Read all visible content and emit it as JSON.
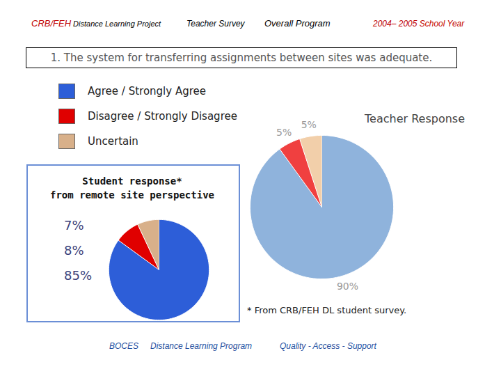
{
  "header": {
    "project": "CRB/FEH",
    "project_sub": "Distance Learning Project",
    "survey": "Teacher Survey",
    "scope": "Overall Program",
    "year": "2004– 2005 School Year"
  },
  "question": "1. The system for transferring assignments between sites was adequate.",
  "chart_data": [
    {
      "type": "pie",
      "title": "Teacher Response",
      "categories": [
        "Agree / Strongly Agree",
        "Disagree / Strongly Disagree",
        "Uncertain"
      ],
      "values": [
        90,
        5,
        5
      ],
      "value_labels": [
        "90%",
        "5%",
        "5%"
      ],
      "colors": [
        "#8fb3dc",
        "#f04040",
        "#f2cfaa"
      ],
      "data_labels": true
    },
    {
      "type": "pie",
      "title": "Student response*\nfrom remote site perspective",
      "categories": [
        "Agree / Strongly Agree",
        "Disagree / Strongly Disagree",
        "Uncertain"
      ],
      "values": [
        85,
        8,
        7
      ],
      "value_labels": [
        "85%",
        "8%",
        "7%"
      ],
      "colors": [
        "#2d5ed8",
        "#e00000",
        "#d8b08a"
      ],
      "data_labels": true
    }
  ],
  "footnote": "* From CRB/FEH DL student survey.",
  "footer": [
    "BOCES",
    "Distance Learning Program",
    "Quality - Access - Support"
  ]
}
